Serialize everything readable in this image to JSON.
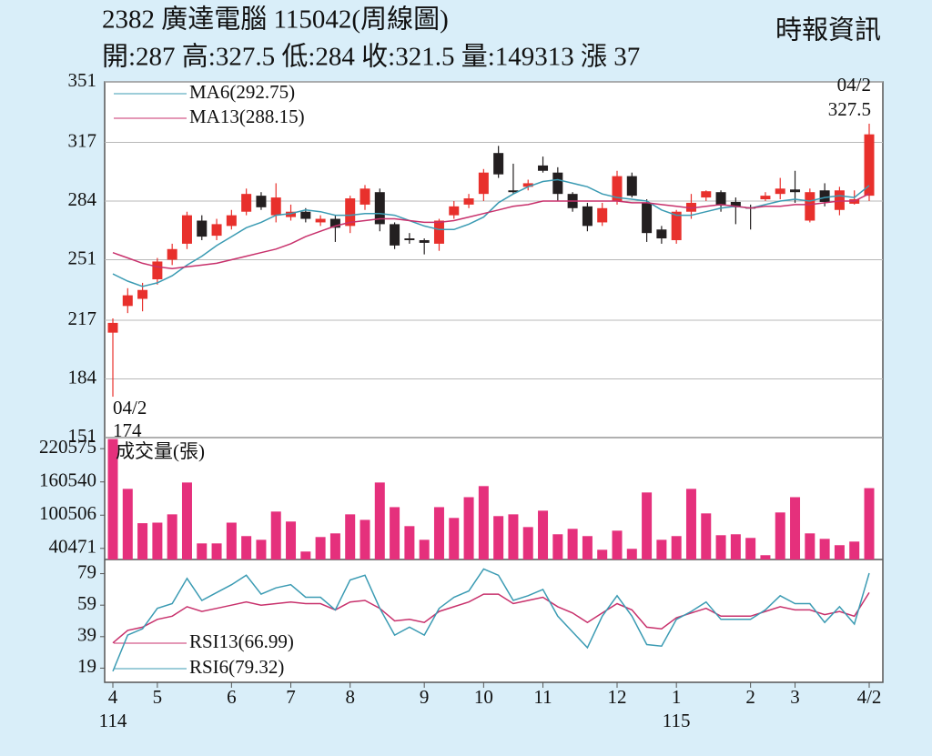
{
  "header": {
    "title": "2382  廣達電腦 115042(周線圖)",
    "source": "時報資訊",
    "info": "開:287 高:327.5 低:284 收:321.5 量:149313 漲 37"
  },
  "chart_data": [
    {
      "type": "candlestick",
      "open": [
        210,
        225,
        229,
        240,
        251,
        260,
        273,
        264.5,
        270,
        278,
        287,
        276,
        275,
        278,
        272,
        274,
        270,
        282,
        289,
        271,
        263,
        262,
        260,
        276,
        282,
        288,
        311,
        290,
        292,
        304,
        300,
        288,
        281,
        272,
        284,
        298,
        283,
        268,
        262,
        278,
        286,
        289,
        283.5,
        280.5,
        285,
        288,
        290.5,
        273,
        290,
        279,
        282.5,
        287
      ],
      "high": [
        218,
        235,
        238,
        252,
        260,
        278,
        276,
        274,
        279,
        291,
        289,
        294,
        282,
        280,
        276,
        276,
        287,
        293,
        291,
        272,
        266,
        263,
        274,
        284,
        288,
        302,
        315,
        305,
        296,
        309,
        303,
        289,
        283,
        283,
        301,
        300,
        285,
        270,
        279,
        288,
        290,
        290,
        286,
        282,
        289,
        297,
        301,
        291,
        294,
        292,
        290,
        327.5
      ],
      "low": [
        174,
        221,
        222,
        237,
        248,
        257,
        262,
        262,
        268,
        276,
        279,
        272,
        273,
        272,
        270,
        261,
        266,
        279,
        267,
        257,
        260,
        254,
        256,
        274,
        280,
        284,
        297,
        288,
        290,
        300,
        284,
        278,
        267,
        270,
        282,
        286,
        261,
        260,
        260,
        274,
        284,
        278,
        271,
        268,
        284,
        285,
        283,
        272,
        281,
        276,
        282,
        284
      ],
      "close": [
        215.5,
        231,
        234,
        250,
        257,
        276,
        264,
        271,
        276,
        288,
        280.5,
        286,
        278,
        274,
        274,
        269,
        285.5,
        291,
        271,
        259,
        262,
        260.5,
        273,
        281,
        285.5,
        300,
        299,
        289,
        294,
        301,
        288,
        280,
        270,
        280,
        298,
        287,
        266,
        263,
        278,
        283,
        289.5,
        281.5,
        280.5,
        280,
        287,
        291,
        289,
        289,
        283.5,
        290,
        285,
        321.5
      ],
      "up_color": "#e8302c",
      "down_color": "#231f20",
      "series": [
        {
          "name": "MA6(292.75)",
          "color": "#3b9bb3",
          "values": [
            243,
            239,
            236,
            238,
            242,
            248,
            253,
            259,
            264,
            269,
            272,
            276,
            277,
            279,
            278,
            276,
            276,
            277,
            277,
            276,
            273,
            270,
            268,
            268,
            271,
            275,
            283,
            288,
            292,
            295,
            296,
            294,
            292,
            288,
            286,
            285,
            284,
            279,
            276,
            276,
            278,
            280,
            281,
            280,
            282,
            284,
            285,
            284,
            286,
            287,
            286,
            292.75
          ]
        },
        {
          "name": "MA13(288.15)",
          "color": "#c8316c",
          "values": [
            255,
            252,
            249,
            247,
            246,
            247,
            248,
            249,
            251,
            253,
            255,
            257,
            260,
            264,
            267,
            270,
            272,
            273,
            274,
            274,
            273,
            272,
            272,
            273,
            275,
            277,
            279,
            281,
            282,
            284,
            284,
            284,
            284,
            284,
            284,
            283,
            283,
            282,
            281,
            280,
            281,
            282,
            281,
            280,
            281,
            281,
            282,
            282,
            283,
            284,
            284,
            288.15
          ]
        }
      ],
      "high_annotation": [
        "04/2",
        "327.5"
      ],
      "low_annotation": [
        "04/2",
        "174"
      ],
      "ylim": [
        151,
        351
      ],
      "yticks": [
        151,
        184,
        217,
        251,
        284,
        317,
        351
      ],
      "grid": true
    },
    {
      "type": "bar",
      "series": [
        {
          "name": "成交量(張)",
          "color": "#e5307c",
          "values": [
            238000,
            148000,
            86000,
            87000,
            102000,
            159500,
            49500,
            49500,
            87000,
            62700,
            56000,
            107000,
            89000,
            34800,
            61000,
            67600,
            102000,
            92000,
            159500,
            115000,
            80700,
            56000,
            115000,
            95500,
            133000,
            153000,
            98800,
            102000,
            79000,
            108600,
            66000,
            75800,
            62700,
            38000,
            72500,
            39700,
            141500,
            56000,
            62700,
            148000,
            103700,
            64300,
            66000,
            59400,
            28200,
            105400,
            133000,
            67600,
            57700,
            46300,
            52800,
            149313
          ]
        }
      ],
      "ylim": [
        20437,
        240609
      ],
      "yticks": [
        40471,
        100506,
        160540,
        220575
      ]
    },
    {
      "type": "line",
      "categories": [
        "4",
        null,
        null,
        "5",
        null,
        null,
        null,
        null,
        "6",
        null,
        null,
        null,
        "7",
        null,
        null,
        null,
        "8",
        null,
        null,
        null,
        null,
        "9",
        null,
        null,
        null,
        "10",
        null,
        null,
        null,
        "11",
        null,
        null,
        null,
        null,
        "12",
        null,
        null,
        null,
        "1",
        null,
        null,
        null,
        null,
        "2",
        null,
        null,
        "3",
        null,
        null,
        null,
        null,
        "4/2"
      ],
      "years": [
        "114",
        null,
        null,
        null,
        null,
        null,
        null,
        null,
        null,
        null,
        null,
        null,
        null,
        null,
        null,
        null,
        null,
        null,
        null,
        null,
        null,
        null,
        null,
        null,
        null,
        null,
        null,
        null,
        null,
        null,
        null,
        null,
        null,
        null,
        null,
        null,
        null,
        null,
        "115",
        null,
        null,
        null,
        null,
        null,
        null,
        null,
        null,
        null,
        null,
        null,
        null,
        null
      ],
      "series": [
        {
          "name": "RSI13(66.99)",
          "color": "#c8316c",
          "values": [
            35,
            43,
            45,
            50,
            52,
            58,
            55,
            57,
            59,
            61,
            59,
            60,
            61,
            60,
            60,
            56,
            61,
            62,
            57,
            49,
            50,
            48,
            55,
            58,
            61,
            66,
            66,
            60,
            62,
            64,
            58,
            54,
            48,
            54,
            60,
            56,
            45,
            44,
            51,
            54,
            57,
            52,
            52,
            52,
            55,
            58,
            56,
            56,
            53,
            55,
            52,
            66.99
          ]
        },
        {
          "name": "RSI6(79.32)",
          "color": "#3b9bb3",
          "values": [
            17,
            40,
            44,
            57,
            60,
            76,
            62,
            67,
            72,
            78,
            66,
            70,
            72,
            64,
            64,
            56,
            75,
            78,
            57,
            40,
            45,
            40,
            57,
            64,
            68,
            82,
            78,
            62,
            65,
            69,
            52,
            42,
            32,
            52,
            65,
            52,
            34,
            33,
            50,
            55,
            61,
            50,
            50,
            50,
            56,
            65,
            60,
            60,
            48,
            58,
            47,
            79.32
          ]
        }
      ],
      "ylim": [
        10,
        88
      ],
      "yticks": [
        19,
        39,
        59,
        79
      ]
    }
  ]
}
